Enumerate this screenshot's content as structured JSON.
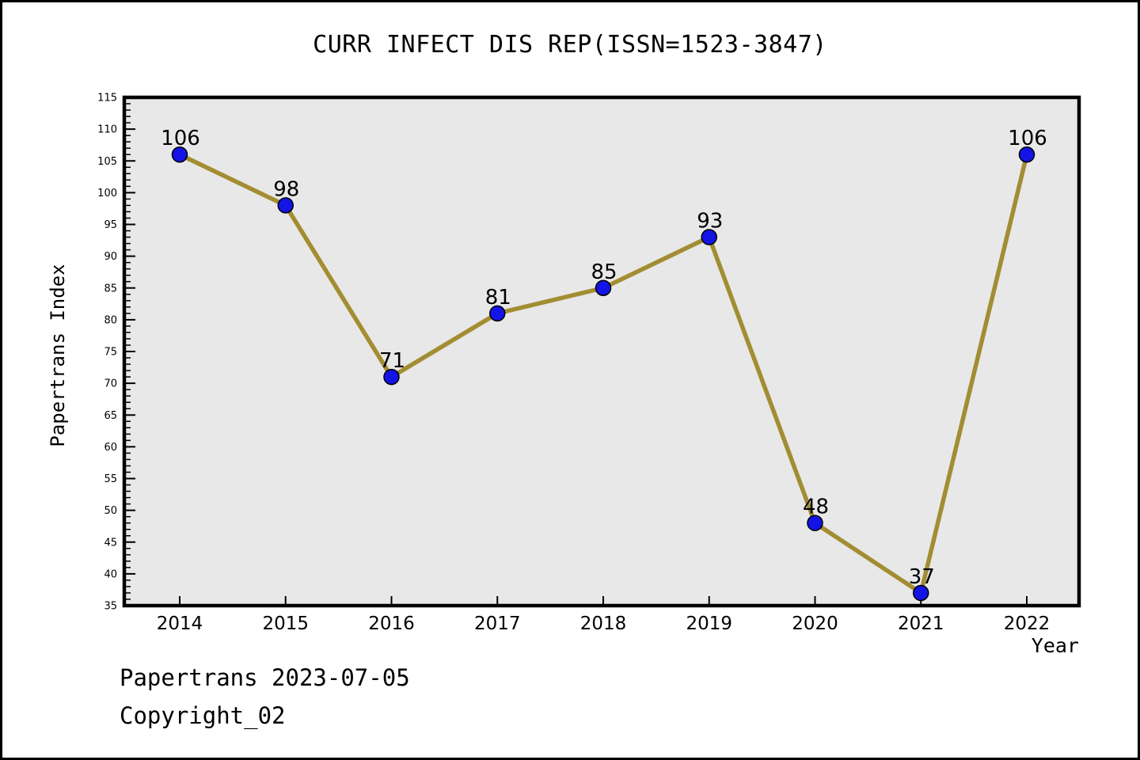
{
  "chart_data": {
    "type": "line",
    "title": "CURR INFECT DIS REP(ISSN=1523-3847)",
    "categories": [
      "2014",
      "2015",
      "2016",
      "2017",
      "2018",
      "2019",
      "2020",
      "2021",
      "2022"
    ],
    "values": [
      106,
      98,
      71,
      81,
      85,
      93,
      48,
      37,
      106
    ],
    "xlabel": "Year",
    "ylabel": "Papertrans Index",
    "ylim": [
      35,
      115
    ],
    "yticks": [
      35,
      40,
      45,
      50,
      55,
      60,
      65,
      70,
      75,
      80,
      85,
      90,
      95,
      100,
      105,
      110,
      115
    ],
    "ytick_minor_step": 1,
    "grid": false,
    "legend_position": "none",
    "point_labels_visible": true,
    "colors": {
      "line": "#a38d33",
      "marker_fill": "#1414e6",
      "marker_edge": "#000000",
      "plot_background": "#e8e8e8",
      "frame": "#000000",
      "text": "#000000"
    }
  },
  "footer": {
    "line1": "Papertrans 2023-07-05",
    "line2": "Copyright_02"
  }
}
